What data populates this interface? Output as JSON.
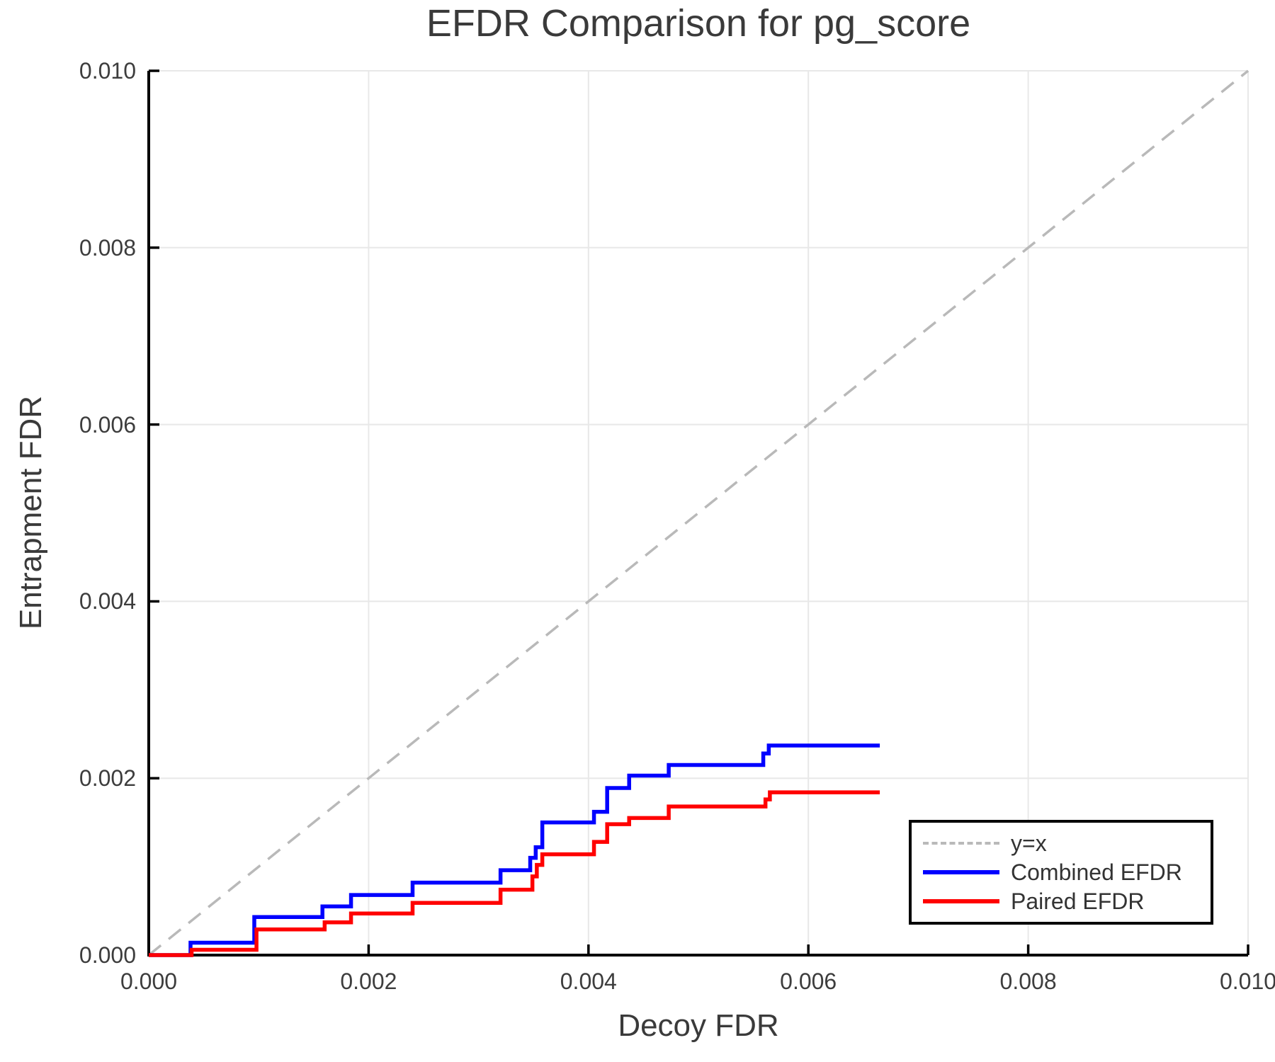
{
  "title": "EFDR Comparison for pg_score",
  "chart_data": {
    "type": "line",
    "title": "EFDR Comparison for pg_score",
    "xlabel": "Decoy FDR",
    "ylabel": "Entrapment FDR",
    "xlim": [
      0.0,
      0.01
    ],
    "ylim": [
      0.0,
      0.01
    ],
    "x_tick_labels": [
      "0.000",
      "0.002",
      "0.004",
      "0.006",
      "0.008",
      "0.010"
    ],
    "y_tick_labels": [
      "0.000",
      "0.002",
      "0.004",
      "0.006",
      "0.008",
      "0.010"
    ],
    "x_tick_values": [
      0.0,
      0.002,
      0.004,
      0.006,
      0.008,
      0.01
    ],
    "y_tick_values": [
      0.0,
      0.002,
      0.004,
      0.006,
      0.008,
      0.01
    ],
    "grid": true,
    "legend_position": "lower right",
    "reference_line": {
      "label": "y=x",
      "kind": "diagonal",
      "color": "#b9b9b9",
      "dashed": true
    },
    "series": [
      {
        "name": "Combined EFDR",
        "color": "#0000ff",
        "style": "steps-post",
        "x": [
          0.0,
          0.00038,
          0.00096,
          0.00158,
          0.00184,
          0.0024,
          0.0032,
          0.00347,
          0.00352,
          0.00358,
          0.00405,
          0.00417,
          0.00437,
          0.00473,
          0.00559,
          0.00564,
          0.00665
        ],
        "y": [
          0.0,
          0.00014,
          0.00043,
          0.00055,
          0.00068,
          0.00082,
          0.00096,
          0.0011,
          0.00122,
          0.0015,
          0.00162,
          0.00189,
          0.00203,
          0.00215,
          0.00228,
          0.00237,
          0.00237
        ]
      },
      {
        "name": "Paired EFDR",
        "color": "#ff0000",
        "style": "steps-post",
        "x": [
          0.0,
          0.00039,
          0.00098,
          0.0016,
          0.00184,
          0.0024,
          0.0032,
          0.00349,
          0.00353,
          0.00358,
          0.00405,
          0.00417,
          0.00437,
          0.00473,
          0.00561,
          0.00565,
          0.00665
        ],
        "y": [
          0.0,
          6e-05,
          0.00029,
          0.00037,
          0.00047,
          0.00059,
          0.00074,
          0.00089,
          0.00102,
          0.00114,
          0.00128,
          0.00148,
          0.00155,
          0.00168,
          0.00176,
          0.00184,
          0.00184
        ]
      }
    ],
    "legend": {
      "items": [
        {
          "label": "y=x",
          "color": "#b9b9b9",
          "dashed": true,
          "weight": 4
        },
        {
          "label": "Combined EFDR",
          "color": "#0000ff",
          "dashed": false,
          "weight": 6
        },
        {
          "label": "Paired EFDR",
          "color": "#ff0000",
          "dashed": false,
          "weight": 6
        }
      ]
    },
    "colors": {
      "grid": "#e8e8e8",
      "axis": "#000000",
      "text": "#3a3a3a",
      "tick_text": "#3d3d3d",
      "background": "#ffffff"
    }
  }
}
